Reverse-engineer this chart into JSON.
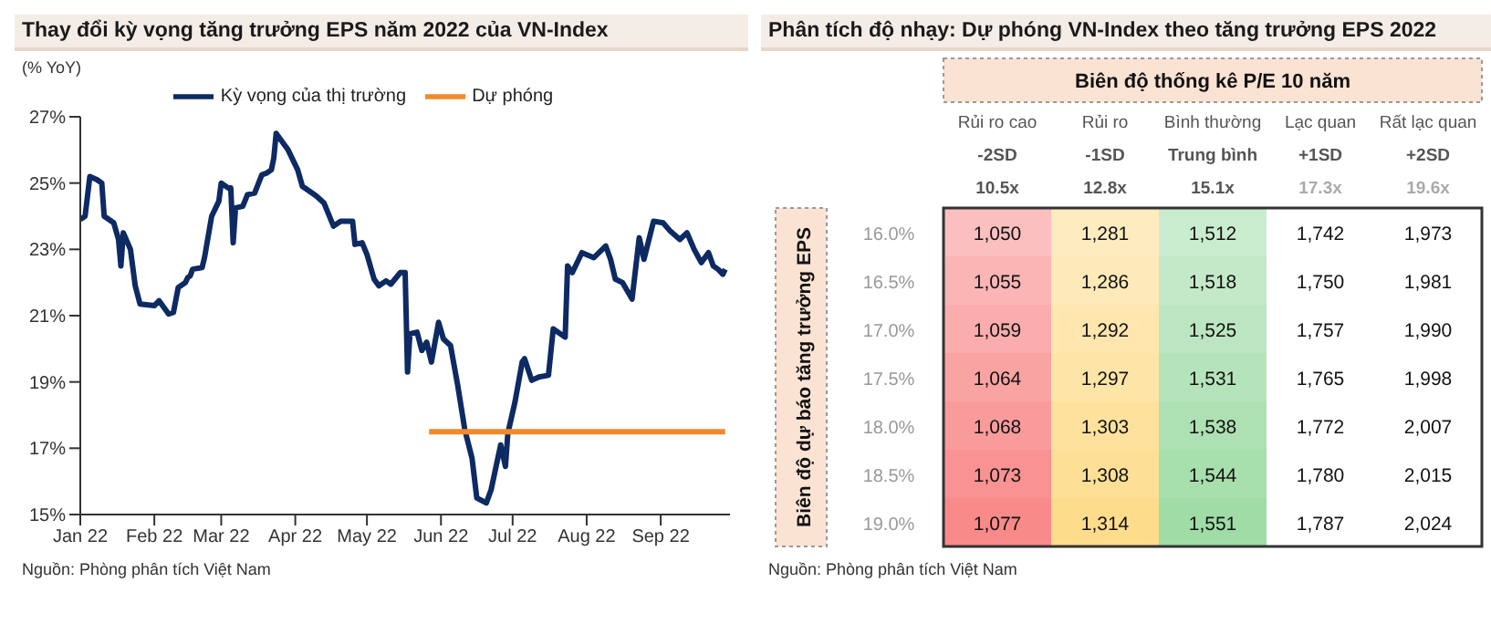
{
  "chart_data": [
    {
      "type": "line",
      "title": "Thay đổi kỳ vọng tăng trưởng EPS năm 2022 của VN-Index",
      "ylabel": "(% YoY)",
      "legend": "top",
      "marker": "none",
      "line_style": "solid",
      "xlim": [
        "2022-01-01",
        "2022-09-30"
      ],
      "xticks": [
        {
          "value": "2022-01-01",
          "label": "Jan 22"
        },
        {
          "value": "2022-02-01",
          "label": "Feb 22"
        },
        {
          "value": "2022-03-01",
          "label": "Mar 22"
        },
        {
          "value": "2022-04-01",
          "label": "Apr 22"
        },
        {
          "value": "2022-05-01",
          "label": "May 22"
        },
        {
          "value": "2022-06-01",
          "label": "Jun 22"
        },
        {
          "value": "2022-07-01",
          "label": "Jul 22"
        },
        {
          "value": "2022-08-01",
          "label": "Aug 22"
        },
        {
          "value": "2022-09-01",
          "label": "Sep 22"
        }
      ],
      "ylim": [
        15,
        27
      ],
      "yticks": [
        {
          "value": 15,
          "label": "15%"
        },
        {
          "value": 17,
          "label": "17%"
        },
        {
          "value": 19,
          "label": "19%"
        },
        {
          "value": 21,
          "label": "21%"
        },
        {
          "value": 23,
          "label": "23%"
        },
        {
          "value": 25,
          "label": "25%"
        },
        {
          "value": 27,
          "label": "27%"
        }
      ],
      "series": [
        {
          "name": "Kỳ vọng của thị trường",
          "color": "#0d2a63",
          "x": [
            "2022-01-01",
            "2022-01-03",
            "2022-01-05",
            "2022-01-08",
            "2022-01-10",
            "2022-01-11",
            "2022-01-15",
            "2022-01-17",
            "2022-01-18",
            "2022-01-19",
            "2022-01-22",
            "2022-01-24",
            "2022-01-26",
            "2022-02-01",
            "2022-02-03",
            "2022-02-07",
            "2022-02-09",
            "2022-02-11",
            "2022-02-14",
            "2022-02-15",
            "2022-02-16",
            "2022-02-17",
            "2022-02-21",
            "2022-02-22",
            "2022-02-25",
            "2022-02-28",
            "2022-03-01",
            "2022-03-04",
            "2022-03-05",
            "2022-03-06",
            "2022-03-07",
            "2022-03-10",
            "2022-03-12",
            "2022-03-15",
            "2022-03-18",
            "2022-03-20",
            "2022-03-22",
            "2022-03-23",
            "2022-03-24",
            "2022-03-26",
            "2022-03-29",
            "2022-04-02",
            "2022-04-04",
            "2022-04-08",
            "2022-04-10",
            "2022-04-13",
            "2022-04-17",
            "2022-04-20",
            "2022-04-25",
            "2022-04-26",
            "2022-04-29",
            "2022-05-01",
            "2022-05-04",
            "2022-05-06",
            "2022-05-09",
            "2022-05-11",
            "2022-05-15",
            "2022-05-17",
            "2022-05-18",
            "2022-05-19",
            "2022-05-22",
            "2022-05-24",
            "2022-05-26",
            "2022-05-28",
            "2022-05-31",
            "2022-06-02",
            "2022-06-05",
            "2022-06-08",
            "2022-06-11",
            "2022-06-14",
            "2022-06-16",
            "2022-06-20",
            "2022-06-22",
            "2022-06-26",
            "2022-06-28",
            "2022-06-29",
            "2022-07-02",
            "2022-07-05",
            "2022-07-06",
            "2022-07-09",
            "2022-07-12",
            "2022-07-16",
            "2022-07-18",
            "2022-07-23",
            "2022-07-24",
            "2022-07-26",
            "2022-07-30",
            "2022-08-04",
            "2022-08-09",
            "2022-08-11",
            "2022-08-13",
            "2022-08-16",
            "2022-08-20",
            "2022-08-23",
            "2022-08-25",
            "2022-08-29",
            "2022-09-02",
            "2022-09-05",
            "2022-09-09",
            "2022-09-12",
            "2022-09-15",
            "2022-09-18",
            "2022-09-21",
            "2022-09-23",
            "2022-09-25",
            "2022-09-27",
            "2022-09-28"
          ],
          "values": [
            23.9,
            24.0,
            25.2,
            25.1,
            25.0,
            24.0,
            23.8,
            23.3,
            22.5,
            23.5,
            23.0,
            21.9,
            21.35,
            21.3,
            21.45,
            21.05,
            21.1,
            21.85,
            22.0,
            22.15,
            22.2,
            22.4,
            22.45,
            22.75,
            24.0,
            24.45,
            25.0,
            24.85,
            24.85,
            23.2,
            24.25,
            24.3,
            24.65,
            24.7,
            25.25,
            25.3,
            25.4,
            25.75,
            26.5,
            26.3,
            26.0,
            25.4,
            24.9,
            24.7,
            24.6,
            24.4,
            23.7,
            23.85,
            23.85,
            23.15,
            23.2,
            22.85,
            22.1,
            21.9,
            22.05,
            21.95,
            22.3,
            22.3,
            19.3,
            20.45,
            20.5,
            19.95,
            20.2,
            19.6,
            20.8,
            20.3,
            20.1,
            18.9,
            17.55,
            16.7,
            15.5,
            15.35,
            15.75,
            17.1,
            16.45,
            17.45,
            18.4,
            19.6,
            19.7,
            19.05,
            19.15,
            19.2,
            20.6,
            20.35,
            22.5,
            22.3,
            22.9,
            22.75,
            23.1,
            22.7,
            22.1,
            22.0,
            21.5,
            23.35,
            22.7,
            23.85,
            23.8,
            23.55,
            23.3,
            23.5,
            23.0,
            22.6,
            22.9,
            22.5,
            22.4,
            22.25,
            22.4
          ]
        },
        {
          "name": "Dự phóng",
          "color": "#f08a2c",
          "x": [
            "2022-05-27",
            "2022-09-28"
          ],
          "values": [
            17.5,
            17.5
          ]
        }
      ],
      "annotations": [
        "Nguồn: Phòng phân tích Việt Nam"
      ]
    },
    {
      "type": "heatmap",
      "title": "Phân tích độ nhạy: Dự phóng VN-Index theo tăng trưởng EPS 2022",
      "subtitle": "Biên độ thống kê P/E 10 năm",
      "ylabel": "Biên độ dự báo tăng trưởng EPS",
      "categories": [
        "Rủi ro cao\n-2SD\n10.5x",
        "Rủi ro\n-1SD\n12.8x",
        "Bình thường\nTrung bình\n15.1x",
        "Lạc quan\n+1SD\n17.3x",
        "Rất lạc quan\n+2SD\n19.6x"
      ],
      "y_categories": [
        "16.0%",
        "16.5%",
        "17.0%",
        "17.5%",
        "18.0%",
        "18.5%",
        "19.0%"
      ],
      "colors": [
        "#f98a8a",
        "#fddc8c",
        "#9fdca6",
        "#ffffff",
        "#ffffff"
      ],
      "cells": [
        [
          1050,
          1281,
          1512,
          1742,
          1973
        ],
        [
          1055,
          1286,
          1518,
          1750,
          1981
        ],
        [
          1059,
          1292,
          1525,
          1757,
          1990
        ],
        [
          1064,
          1297,
          1531,
          1765,
          1998
        ],
        [
          1068,
          1303,
          1538,
          1772,
          2007
        ],
        [
          1073,
          1308,
          1544,
          1780,
          2015
        ],
        [
          1077,
          1314,
          1551,
          1787,
          2024
        ]
      ],
      "cell_labels": [
        [
          "1,050",
          "1,281",
          "1,512",
          "1,742",
          "1,973"
        ],
        [
          "1,055",
          "1,286",
          "1,518",
          "1,750",
          "1,981"
        ],
        [
          "1,059",
          "1,292",
          "1,525",
          "1,757",
          "1,990"
        ],
        [
          "1,064",
          "1,297",
          "1,531",
          "1,765",
          "1,998"
        ],
        [
          "1,068",
          "1,303",
          "1,538",
          "1,772",
          "2,007"
        ],
        [
          "1,073",
          "1,308",
          "1,544",
          "1,780",
          "2,015"
        ],
        [
          "1,077",
          "1,314",
          "1,551",
          "1,787",
          "2,024"
        ]
      ],
      "annotations": [
        "Nguồn: Phòng phân tích Việt Nam"
      ]
    }
  ]
}
